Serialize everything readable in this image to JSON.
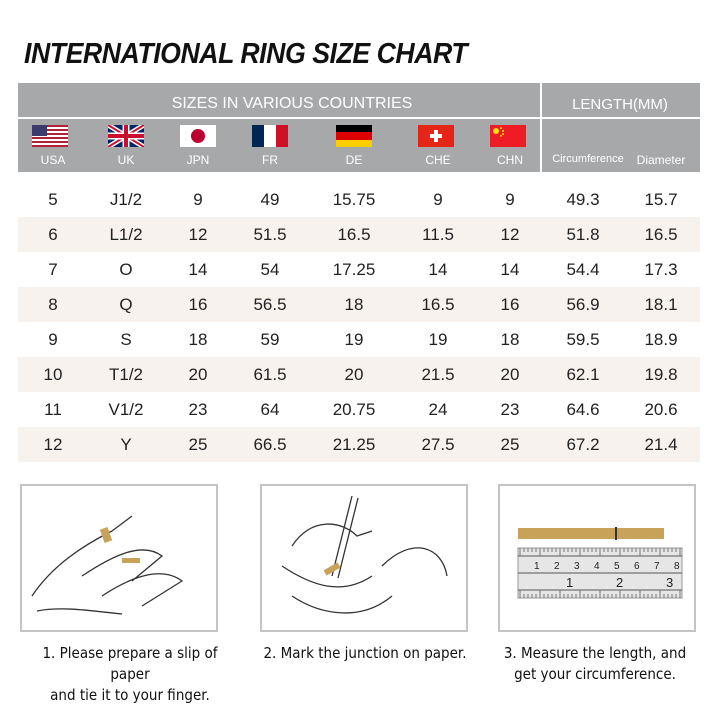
{
  "title": "INTERNATIONAL RING SIZE CHART",
  "header": {
    "sizes_label": "SIZES IN VARIOUS COUNTRIES",
    "length_label": "LENGTH(MM)",
    "countries": [
      {
        "code": "USA",
        "flag": "us-flag"
      },
      {
        "code": "UK",
        "flag": "uk-flag"
      },
      {
        "code": "JPN",
        "flag": "japan-flag"
      },
      {
        "code": "FR",
        "flag": "france-flag"
      },
      {
        "code": "DE",
        "flag": "germany-flag"
      },
      {
        "code": "CHE",
        "flag": "switzerland-flag"
      },
      {
        "code": "CHN",
        "flag": "china-flag"
      }
    ],
    "circumference": "Circumference",
    "diameter": "Diameter"
  },
  "rows": [
    [
      "5",
      "J1/2",
      "9",
      "49",
      "15.75",
      "9",
      "9",
      "49.3",
      "15.7"
    ],
    [
      "6",
      "L1/2",
      "12",
      "51.5",
      "16.5",
      "11.5",
      "12",
      "51.8",
      "16.5"
    ],
    [
      "7",
      "O",
      "14",
      "54",
      "17.25",
      "14",
      "14",
      "54.4",
      "17.3"
    ],
    [
      "8",
      "Q",
      "16",
      "56.5",
      "18",
      "16.5",
      "16",
      "56.9",
      "18.1"
    ],
    [
      "9",
      "S",
      "18",
      "59",
      "19",
      "19",
      "18",
      "59.5",
      "18.9"
    ],
    [
      "10",
      "T1/2",
      "20",
      "61.5",
      "20",
      "21.5",
      "20",
      "62.1",
      "19.8"
    ],
    [
      "11",
      "V1/2",
      "23",
      "64",
      "20.75",
      "24",
      "23",
      "64.6",
      "20.6"
    ],
    [
      "12",
      "Y",
      "25",
      "66.5",
      "21.25",
      "27.5",
      "25",
      "67.2",
      "21.4"
    ]
  ],
  "steps": [
    {
      "line1": "1. Please prepare a slip of paper",
      "line2": "and tie it to your finger."
    },
    {
      "line1": "2. Mark the junction on paper.",
      "line2": ""
    },
    {
      "line1": "3. Measure the length, and",
      "line2": "get your circumference."
    }
  ],
  "ruler": {
    "top_marks": [
      "1",
      "2",
      "3",
      "4",
      "5",
      "6",
      "7",
      "8"
    ],
    "bottom_marks": [
      "1",
      "2",
      "3"
    ]
  },
  "colors": {
    "header": "#a7a8aa",
    "row_alt": "#f8f2ef",
    "paper": "#c9a25a"
  }
}
